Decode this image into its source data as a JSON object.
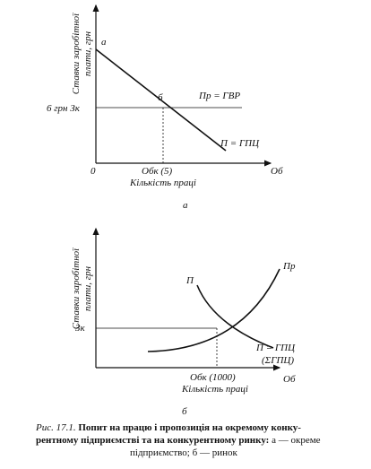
{
  "panel_a": {
    "y_axis_label": [
      "Ставки заробітної",
      "плати, грн"
    ],
    "origin": "0",
    "x_end": "Об",
    "point_a": "а",
    "point_b": "б",
    "wage_level": "6 грн Зк",
    "supply_label": "Пр = ГВР",
    "demand_label": "П = ГПЦ",
    "quantity_label": "Обк (5)",
    "x_axis_label": "Кількість праці",
    "caption": "а"
  },
  "panel_b": {
    "y_axis_label": [
      "Ставки заробітної",
      "плати, грн"
    ],
    "demand_curve": "П",
    "supply_curve": "Пр",
    "wage_level": "Зк",
    "demand_label": [
      "П = ГПЦ",
      "(ΣГПЦ)"
    ],
    "quantity_label": "Обк (1000)",
    "x_end": "Об",
    "x_axis_label": "Кількість праці",
    "caption": "б"
  },
  "figure_caption": {
    "number": "Рис. 17.1.",
    "bold": [
      "Попит на працю і пропозиція на окремому конку-",
      "рентному підприємстві та на конкурентному ринку:"
    ],
    "normal": [
      " а — окреме",
      "підприємство; б — ринок"
    ]
  }
}
